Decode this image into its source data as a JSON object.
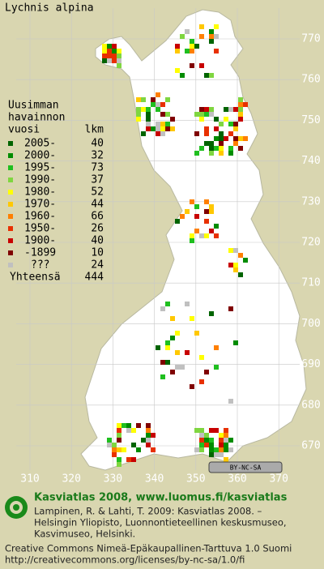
{
  "title": "Lychnis alpina",
  "legend": {
    "heading": [
      "Uusimman",
      "havainnon"
    ],
    "col_year": "vuosi",
    "col_count": "lkm",
    "rows": [
      {
        "label": "2005-",
        "count": 40,
        "color": "#006400"
      },
      {
        "label": "2000-",
        "count": 32,
        "color": "#008c00"
      },
      {
        "label": "1995-",
        "count": 73,
        "color": "#1fbf1f"
      },
      {
        "label": "1990-",
        "count": 37,
        "color": "#7fd640"
      },
      {
        "label": "1980-",
        "count": 52,
        "color": "#ffff00"
      },
      {
        "label": "1970-",
        "count": 44,
        "color": "#ffc800"
      },
      {
        "label": "1960-",
        "count": 66,
        "color": "#ff7f00"
      },
      {
        "label": "1950-",
        "count": 26,
        "color": "#e83000"
      },
      {
        "label": "1900-",
        "count": 40,
        "color": "#c80000"
      },
      {
        "label": "-1899",
        "count": 10,
        "color": "#800000"
      },
      {
        "label": "???",
        "count": 24,
        "color": "#c0c0c0"
      }
    ],
    "total_label": "Yhteensä",
    "total": 444
  },
  "x_labels": [
    310,
    320,
    330,
    340,
    350,
    360,
    370
  ],
  "y_labels": [
    770,
    760,
    750,
    740,
    730,
    720,
    710,
    700,
    690,
    680,
    670
  ],
  "badge": "BY-NC-SA",
  "footer": {
    "brand": "Kasviatlas 2008, www.luomus.fi/kasviatlas",
    "citation": [
      "Lampinen, R. & Lahti, T. 2009: Kasviatlas 2008. –",
      "Helsingin Yliopisto, Luonnontieteellinen keskusmuseo,",
      "Kasvimuseo, Helsinki."
    ],
    "license": [
      "Creative Commons Nimeä-Epäkaupallinen-Tarttuva 1.0 Suomi",
      "http://creativecommons.org/licenses/by-nc-sa/1.0/fi"
    ]
  }
}
